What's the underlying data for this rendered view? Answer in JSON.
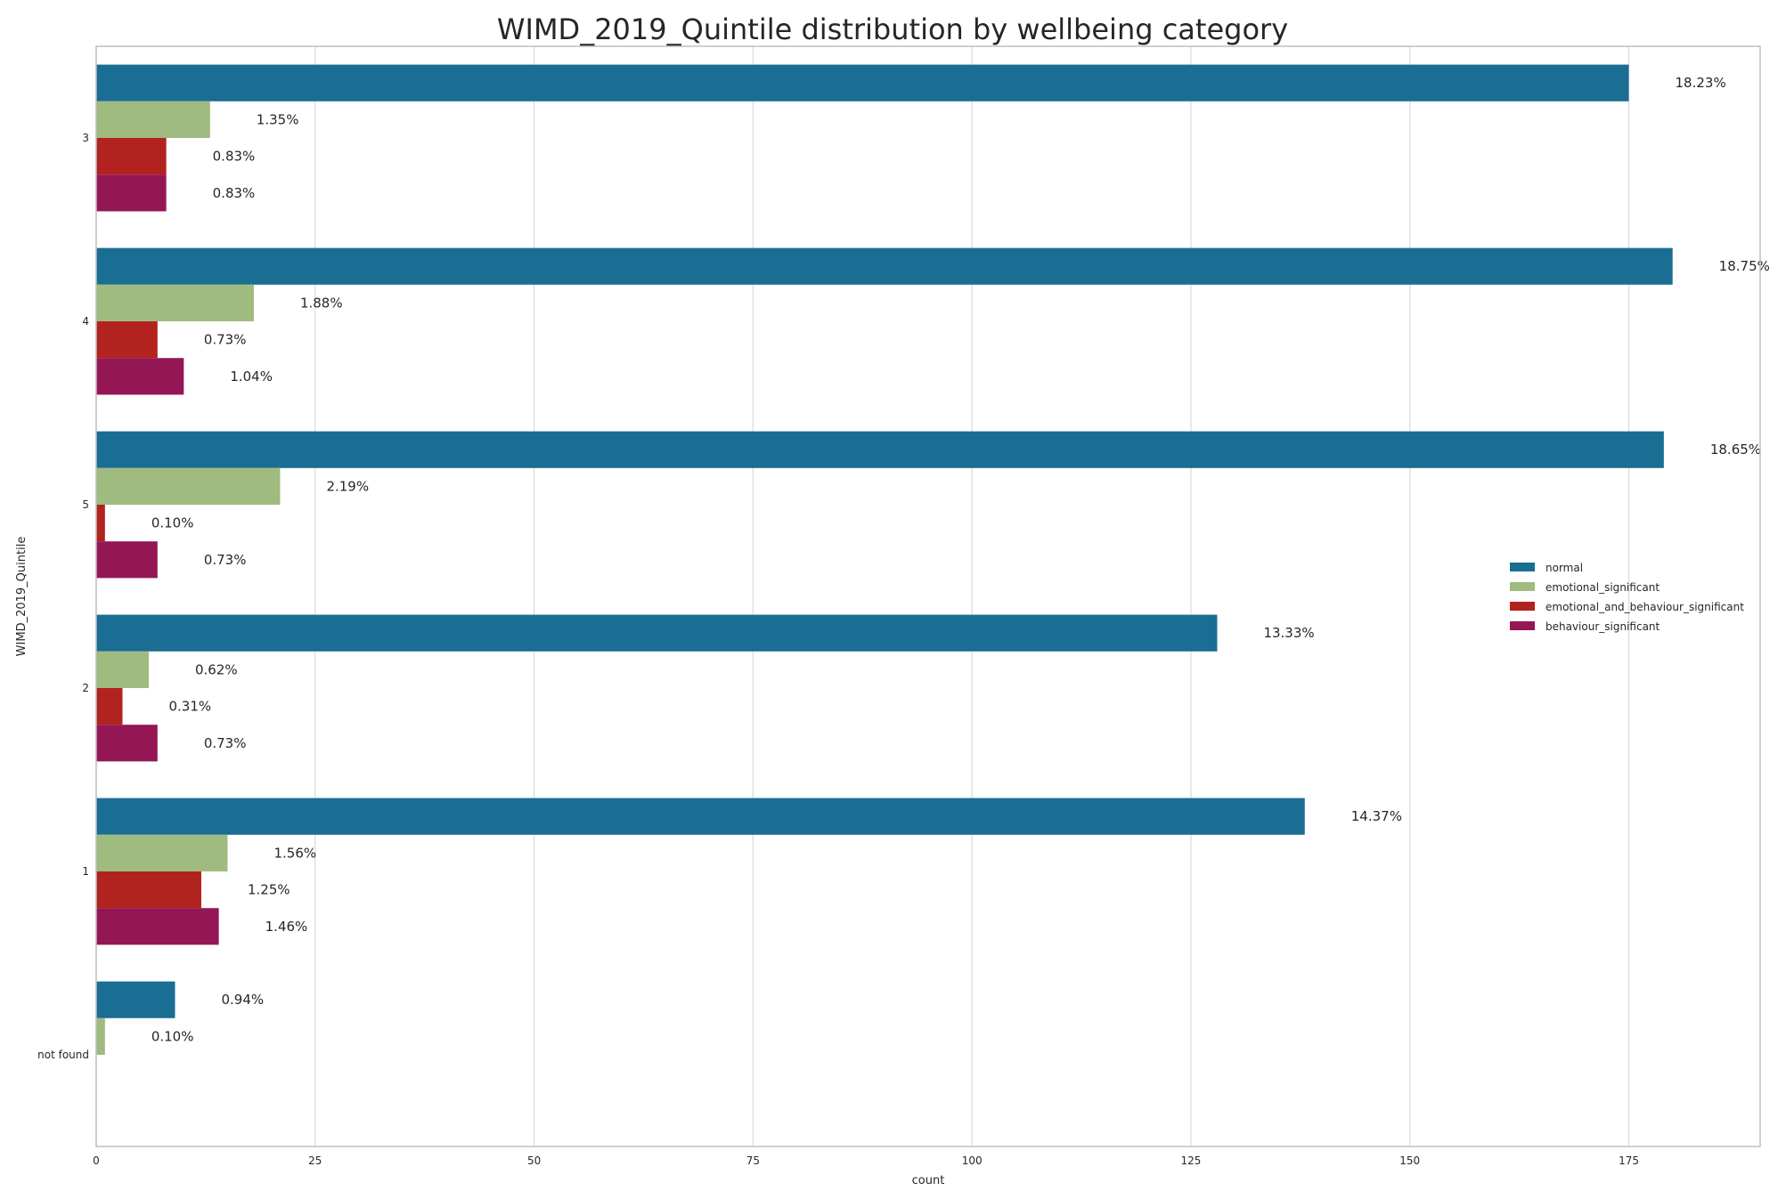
{
  "chart_data": {
    "type": "bar",
    "orientation": "horizontal",
    "title": "WIMD_2019_Quintile distribution by wellbeing category",
    "xlabel": "count",
    "ylabel": "WIMD_2019_Quintile",
    "categories": [
      "3",
      "4",
      "5",
      "2",
      "1",
      "not found"
    ],
    "xlim": [
      0,
      190
    ],
    "xticks": [
      0,
      25,
      50,
      75,
      100,
      125,
      150,
      175
    ],
    "grid": true,
    "legend_position": "right",
    "series": [
      {
        "name": "normal",
        "color": "#1a6d93",
        "values": [
          175,
          180,
          179,
          128,
          138,
          9
        ],
        "labels": [
          "18.23%",
          "18.75%",
          "18.65%",
          "13.33%",
          "14.37%",
          "0.94%"
        ]
      },
      {
        "name": "emotional_significant",
        "color": "#9fbb7f",
        "values": [
          13,
          18,
          21,
          6,
          15,
          1
        ],
        "labels": [
          "1.35%",
          "1.88%",
          "2.19%",
          "0.62%",
          "1.56%",
          "0.10%"
        ]
      },
      {
        "name": "emotional_and_behaviour_significant",
        "color": "#b2221e",
        "values": [
          8,
          7,
          1,
          3,
          12,
          null
        ],
        "labels": [
          "0.83%",
          "0.73%",
          "0.10%",
          "0.31%",
          "1.25%",
          null
        ]
      },
      {
        "name": "behaviour_significant",
        "color": "#941655",
        "values": [
          8,
          10,
          7,
          7,
          14,
          null
        ],
        "labels": [
          "0.83%",
          "1.04%",
          "0.73%",
          "0.73%",
          "1.46%",
          null
        ]
      }
    ]
  }
}
